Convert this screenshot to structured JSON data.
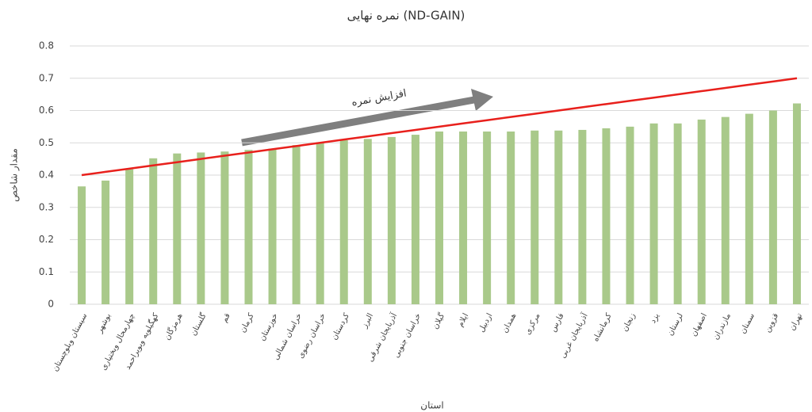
{
  "chart_data": {
    "type": "bar",
    "title": "نمره نهایی (ND-GAIN)",
    "x_label": "استان",
    "y_label": "مقدار شاخص",
    "annotation": "افزایش نمره",
    "categories": [
      "سیستان وبلوچستان",
      "بوشهر",
      "چهارمحال وبختیاری",
      "کهگیلویه وبویراحمد",
      "هرمزگان",
      "گلستان",
      "قم",
      "کرمان",
      "خوزستان",
      "خراسان شمالی",
      "خراسان رضوی",
      "کردستان",
      "البرز",
      "آذربایجان شرقی",
      "خراسان جنوبی",
      "گیلان",
      "ایلام",
      "اردبیل",
      "همدان",
      "مرکزی",
      "فارس",
      "آذربایجان غربی",
      "کرمانشاه",
      "زنجان",
      "یزد",
      "لرستان",
      "اصفهان",
      "مازندران",
      "سمنان",
      "قزوین",
      "تهران"
    ],
    "series": [
      {
        "type": "bar",
        "color": "#a9c98a",
        "values": [
          0.365,
          0.383,
          0.418,
          0.452,
          0.467,
          0.47,
          0.473,
          0.478,
          0.482,
          0.493,
          0.502,
          0.508,
          0.512,
          0.518,
          0.525,
          0.535,
          0.535,
          0.535,
          0.535,
          0.538,
          0.538,
          0.54,
          0.545,
          0.55,
          0.56,
          0.56,
          0.572,
          0.58,
          0.59,
          0.6,
          0.622
        ]
      },
      {
        "type": "line",
        "color": "#e8201c",
        "values": [
          0.4,
          0.41,
          0.42,
          0.43,
          0.44,
          0.45,
          0.46,
          0.47,
          0.48,
          0.49,
          0.5,
          0.51,
          0.52,
          0.53,
          0.54,
          0.55,
          0.56,
          0.57,
          0.58,
          0.59,
          0.6,
          0.61,
          0.62,
          0.63,
          0.64,
          0.65,
          0.66,
          0.67,
          0.68,
          0.69,
          0.7
        ]
      }
    ],
    "ylim": [
      0,
      0.8
    ],
    "yticks": [
      0,
      0.1,
      0.2,
      0.3,
      0.4,
      0.5,
      0.6,
      0.7,
      0.8
    ],
    "grid": true
  }
}
